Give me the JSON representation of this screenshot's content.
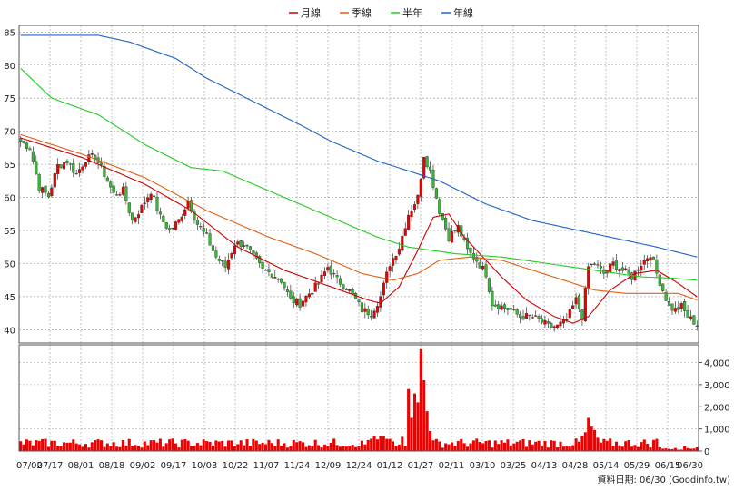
{
  "chart_data": {
    "type": "candlestick",
    "legend": [
      {
        "name": "月線",
        "color": "#cc0000"
      },
      {
        "name": "季線",
        "color": "#e06010"
      },
      {
        "name": "半年",
        "color": "#22cc22"
      },
      {
        "name": "年線",
        "color": "#1e64c8"
      }
    ],
    "legend_position": "top-center",
    "grid": true,
    "price_axis": {
      "range": [
        38,
        86
      ],
      "ticks": [
        40,
        45,
        50,
        55,
        60,
        65,
        70,
        75,
        80,
        85
      ]
    },
    "volume_axis": {
      "range": [
        0,
        4800
      ],
      "ticks": [
        0,
        1000,
        2000,
        3000,
        4000
      ],
      "tick_labels": [
        "0",
        "1,000",
        "2,000",
        "3,000",
        "4,000"
      ]
    },
    "x_tick_labels": [
      "07/02",
      "07/17",
      "08/01",
      "08/18",
      "09/02",
      "09/17",
      "10/03",
      "10/22",
      "11/07",
      "11/24",
      "12/09",
      "12/24",
      "01/12",
      "01/27",
      "02/11",
      "03/10",
      "03/25",
      "04/13",
      "04/28",
      "05/14",
      "05/29",
      "06/15",
      "06/30"
    ],
    "footer": "資料日期: 06/30 (Goodinfo.tw)",
    "colors": {
      "up": "#ee0000",
      "down": "#33bb33",
      "volume": "#ee0000",
      "grid": "#9a9a9a"
    },
    "close_keypoints": [
      [
        0,
        68.5
      ],
      [
        3,
        67.5
      ],
      [
        6,
        61.5
      ],
      [
        9,
        60.2
      ],
      [
        12,
        64.8
      ],
      [
        15,
        65.5
      ],
      [
        18,
        63.5
      ],
      [
        21,
        65.8
      ],
      [
        24,
        66.2
      ],
      [
        27,
        63.5
      ],
      [
        30,
        60.5
      ],
      [
        33,
        61.0
      ],
      [
        36,
        56.5
      ],
      [
        39,
        58.5
      ],
      [
        42,
        61.0
      ],
      [
        45,
        57.0
      ],
      [
        48,
        55.0
      ],
      [
        51,
        56.5
      ],
      [
        54,
        59.5
      ],
      [
        57,
        56.0
      ],
      [
        60,
        54.0
      ],
      [
        63,
        51.0
      ],
      [
        66,
        49.5
      ],
      [
        69,
        53.0
      ],
      [
        72,
        53.0
      ],
      [
        75,
        51.0
      ],
      [
        78,
        49.0
      ],
      [
        81,
        48.5
      ],
      [
        84,
        47.5
      ],
      [
        87,
        44.5
      ],
      [
        90,
        44.0
      ],
      [
        93,
        45.5
      ],
      [
        96,
        47.0
      ],
      [
        99,
        49.5
      ],
      [
        102,
        47.5
      ],
      [
        105,
        46.5
      ],
      [
        108,
        44.5
      ],
      [
        110,
        43.0
      ],
      [
        113,
        42.5
      ],
      [
        116,
        45.0
      ],
      [
        119,
        50.0
      ],
      [
        122,
        52.5
      ],
      [
        125,
        57.5
      ],
      [
        128,
        60.0
      ],
      [
        130,
        66.5
      ],
      [
        132,
        64.0
      ],
      [
        135,
        58.0
      ],
      [
        138,
        54.0
      ],
      [
        141,
        55.5
      ],
      [
        144,
        52.0
      ],
      [
        147,
        50.5
      ],
      [
        150,
        48.5
      ],
      [
        152,
        44.0
      ],
      [
        155,
        43.5
      ],
      [
        158,
        43.0
      ],
      [
        161,
        42.0
      ],
      [
        164,
        42.0
      ],
      [
        167,
        41.5
      ],
      [
        170,
        40.5
      ],
      [
        173,
        40.5
      ],
      [
        176,
        41.5
      ],
      [
        179,
        44.5
      ],
      [
        181,
        42.0
      ],
      [
        183,
        49.5
      ],
      [
        185,
        50.0
      ],
      [
        188,
        48.5
      ],
      [
        191,
        50.0
      ],
      [
        194,
        49.0
      ],
      [
        197,
        48.0
      ],
      [
        200,
        50.0
      ],
      [
        203,
        51.5
      ],
      [
        205,
        48.5
      ],
      [
        207,
        46.0
      ],
      [
        209,
        43.5
      ],
      [
        211,
        43.0
      ],
      [
        213,
        43.5
      ],
      [
        215,
        42.0
      ],
      [
        218,
        40.8
      ]
    ],
    "moving_averages": {
      "月線": [
        [
          0,
          69.0
        ],
        [
          20,
          66.0
        ],
        [
          40,
          62.0
        ],
        [
          55,
          58.0
        ],
        [
          70,
          52.5
        ],
        [
          85,
          49.0
        ],
        [
          100,
          46.5
        ],
        [
          112,
          44.5
        ],
        [
          116,
          44.0
        ],
        [
          122,
          46.5
        ],
        [
          128,
          52.0
        ],
        [
          133,
          57.0
        ],
        [
          138,
          57.5
        ],
        [
          143,
          54.0
        ],
        [
          148,
          51.5
        ],
        [
          155,
          48.0
        ],
        [
          163,
          44.5
        ],
        [
          172,
          42.0
        ],
        [
          178,
          41.0
        ],
        [
          183,
          42.0
        ],
        [
          190,
          46.0
        ],
        [
          198,
          48.5
        ],
        [
          205,
          49.0
        ],
        [
          212,
          47.0
        ],
        [
          218,
          45.0
        ]
      ],
      "季線": [
        [
          0,
          69.5
        ],
        [
          20,
          66.5
        ],
        [
          40,
          63.0
        ],
        [
          60,
          58.0
        ],
        [
          80,
          54.0
        ],
        [
          95,
          51.5
        ],
        [
          110,
          48.5
        ],
        [
          120,
          47.5
        ],
        [
          128,
          48.5
        ],
        [
          135,
          50.5
        ],
        [
          145,
          51.0
        ],
        [
          155,
          50.5
        ],
        [
          165,
          49.0
        ],
        [
          175,
          47.5
        ],
        [
          185,
          46.0
        ],
        [
          195,
          45.5
        ],
        [
          205,
          45.5
        ],
        [
          212,
          45.5
        ],
        [
          218,
          44.5
        ]
      ],
      "半年": [
        [
          0,
          79.5
        ],
        [
          10,
          75.0
        ],
        [
          25,
          72.5
        ],
        [
          40,
          68.0
        ],
        [
          55,
          64.5
        ],
        [
          65,
          64.0
        ],
        [
          80,
          61.0
        ],
        [
          100,
          57.0
        ],
        [
          115,
          54.0
        ],
        [
          125,
          52.5
        ],
        [
          140,
          51.5
        ],
        [
          155,
          51.0
        ],
        [
          170,
          50.0
        ],
        [
          185,
          49.0
        ],
        [
          200,
          48.0
        ],
        [
          210,
          47.8
        ],
        [
          218,
          47.5
        ]
      ],
      "年線": [
        [
          0,
          84.5
        ],
        [
          10,
          84.5
        ],
        [
          25,
          84.5
        ],
        [
          35,
          83.5
        ],
        [
          50,
          81.0
        ],
        [
          60,
          78.0
        ],
        [
          75,
          74.5
        ],
        [
          90,
          71.0
        ],
        [
          100,
          68.5
        ],
        [
          115,
          65.5
        ],
        [
          125,
          64.0
        ],
        [
          135,
          62.5
        ],
        [
          150,
          59.0
        ],
        [
          165,
          56.5
        ],
        [
          180,
          55.0
        ],
        [
          195,
          53.5
        ],
        [
          205,
          52.5
        ],
        [
          218,
          51.0
        ]
      ]
    }
  }
}
